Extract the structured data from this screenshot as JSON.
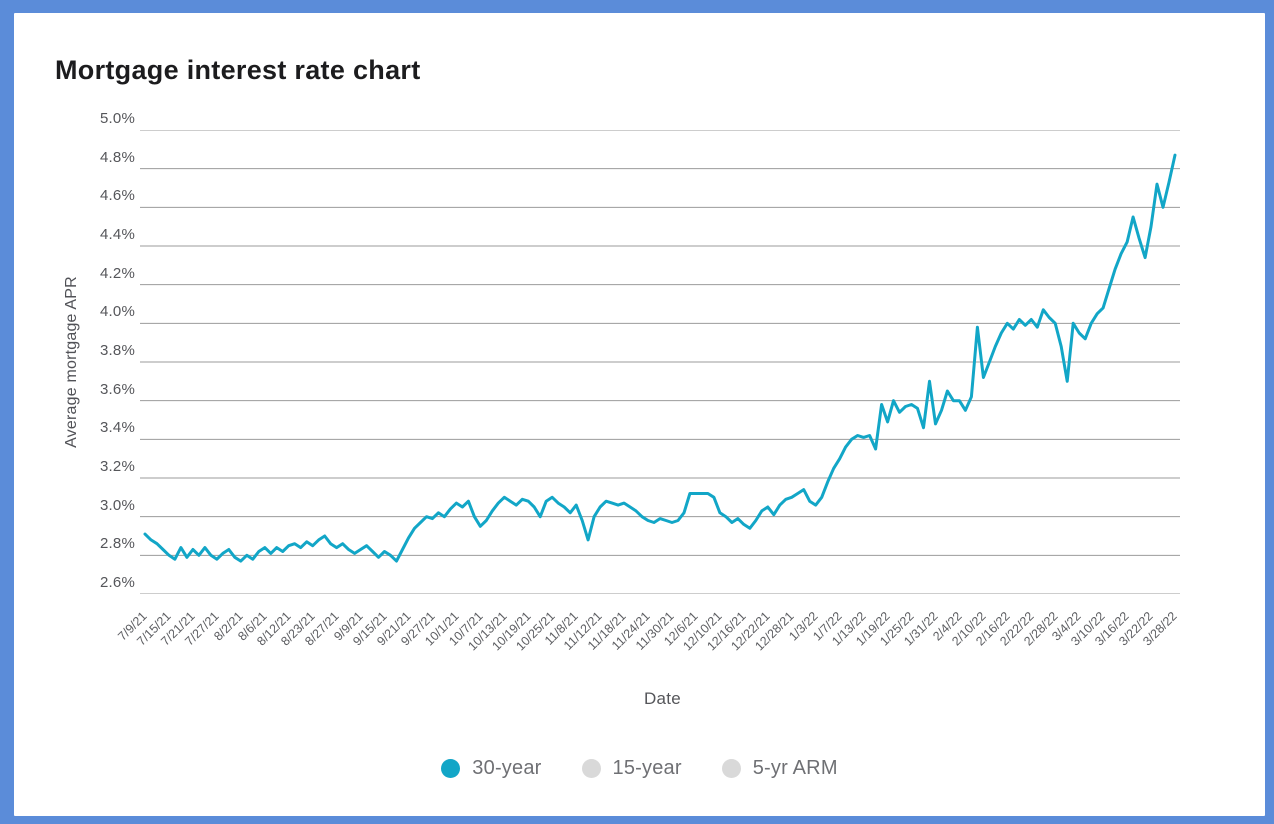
{
  "title": "Mortgage interest rate chart",
  "colors": {
    "frame_blue": "#5b8cd9",
    "accent_teal": "#12a6c7",
    "inactive_gray": "#d9d9d9",
    "gridline_gray": "#9b9b9b",
    "title_text": "#1c1c1e",
    "axis_text": "#55565a",
    "legend_text": "#6f7074"
  },
  "chart_data": {
    "type": "line",
    "title": "Mortgage interest rate chart",
    "xlabel": "Date",
    "ylabel": "Average mortgage APR",
    "ylim": [
      2.6,
      5.0
    ],
    "y_tick_step": 0.2,
    "y_ticks": [
      "5.0%",
      "4.8%",
      "4.6%",
      "4.4%",
      "4.2%",
      "4.0%",
      "3.8%",
      "3.6%",
      "3.4%",
      "3.2%",
      "3.0%",
      "2.8%",
      "2.6%"
    ],
    "grid": true,
    "legend_position": "bottom",
    "x_label_rotation": -45,
    "x_tick_every": 4,
    "x_tick_labels": [
      "7/9/21",
      "7/15/21",
      "7/21/21",
      "7/27/21",
      "8/2/21",
      "8/6/21",
      "8/12/21",
      "8/23/21",
      "8/27/21",
      "9/9/21",
      "9/15/21",
      "9/21/21",
      "9/27/21",
      "10/1/21",
      "10/7/21",
      "10/13/21",
      "10/19/21",
      "10/25/21",
      "11/8/21",
      "11/12/21",
      "11/18/21",
      "11/24/21",
      "11/30/21",
      "12/6/21",
      "12/10/21",
      "12/16/21",
      "12/22/21",
      "12/28/21",
      "1/3/22",
      "1/7/22",
      "1/13/22",
      "1/19/22",
      "1/25/22",
      "1/31/22",
      "2/4/22",
      "2/10/22",
      "2/16/22",
      "2/22/22",
      "2/28/22",
      "3/4/22",
      "3/10/22",
      "3/16/22",
      "3/22/22",
      "3/28/22"
    ],
    "series": [
      {
        "name": "30-year",
        "color": "#12a6c7",
        "active": true,
        "unit": "%",
        "values": [
          2.91,
          2.88,
          2.86,
          2.83,
          2.8,
          2.78,
          2.84,
          2.79,
          2.83,
          2.8,
          2.84,
          2.8,
          2.78,
          2.81,
          2.83,
          2.79,
          2.77,
          2.8,
          2.78,
          2.82,
          2.84,
          2.81,
          2.84,
          2.82,
          2.85,
          2.86,
          2.84,
          2.87,
          2.85,
          2.88,
          2.9,
          2.86,
          2.84,
          2.86,
          2.83,
          2.81,
          2.83,
          2.85,
          2.82,
          2.79,
          2.82,
          2.8,
          2.77,
          2.83,
          2.89,
          2.94,
          2.97,
          3.0,
          2.99,
          3.02,
          3.0,
          3.04,
          3.07,
          3.05,
          3.08,
          3.0,
          2.95,
          2.98,
          3.03,
          3.07,
          3.1,
          3.08,
          3.06,
          3.09,
          3.08,
          3.05,
          3.0,
          3.08,
          3.1,
          3.07,
          3.05,
          3.02,
          3.06,
          2.98,
          2.88,
          3.0,
          3.05,
          3.08,
          3.07,
          3.06,
          3.07,
          3.05,
          3.03,
          3.0,
          2.98,
          2.97,
          2.99,
          2.98,
          2.97,
          2.98,
          3.02,
          3.12,
          3.12,
          3.12,
          3.12,
          3.1,
          3.02,
          3.0,
          2.97,
          2.99,
          2.96,
          2.94,
          2.98,
          3.03,
          3.05,
          3.01,
          3.06,
          3.09,
          3.1,
          3.12,
          3.14,
          3.08,
          3.06,
          3.1,
          3.18,
          3.25,
          3.3,
          3.36,
          3.4,
          3.42,
          3.41,
          3.42,
          3.35,
          3.58,
          3.49,
          3.6,
          3.54,
          3.57,
          3.58,
          3.56,
          3.46,
          3.7,
          3.48,
          3.55,
          3.65,
          3.6,
          3.6,
          3.55,
          3.62,
          3.98,
          3.72,
          3.8,
          3.88,
          3.95,
          4.0,
          3.97,
          4.02,
          3.99,
          4.02,
          3.98,
          4.07,
          4.03,
          4.0,
          3.88,
          3.7,
          4.0,
          3.95,
          3.92,
          4.0,
          4.05,
          4.08,
          4.18,
          4.28,
          4.36,
          4.42,
          4.55,
          4.44,
          4.34,
          4.5,
          4.72,
          4.6,
          4.73,
          4.87
        ]
      },
      {
        "name": "15-year",
        "color": "#d9d9d9",
        "active": false,
        "values": null
      },
      {
        "name": "5-yr ARM",
        "color": "#d9d9d9",
        "active": false,
        "values": null
      }
    ]
  }
}
